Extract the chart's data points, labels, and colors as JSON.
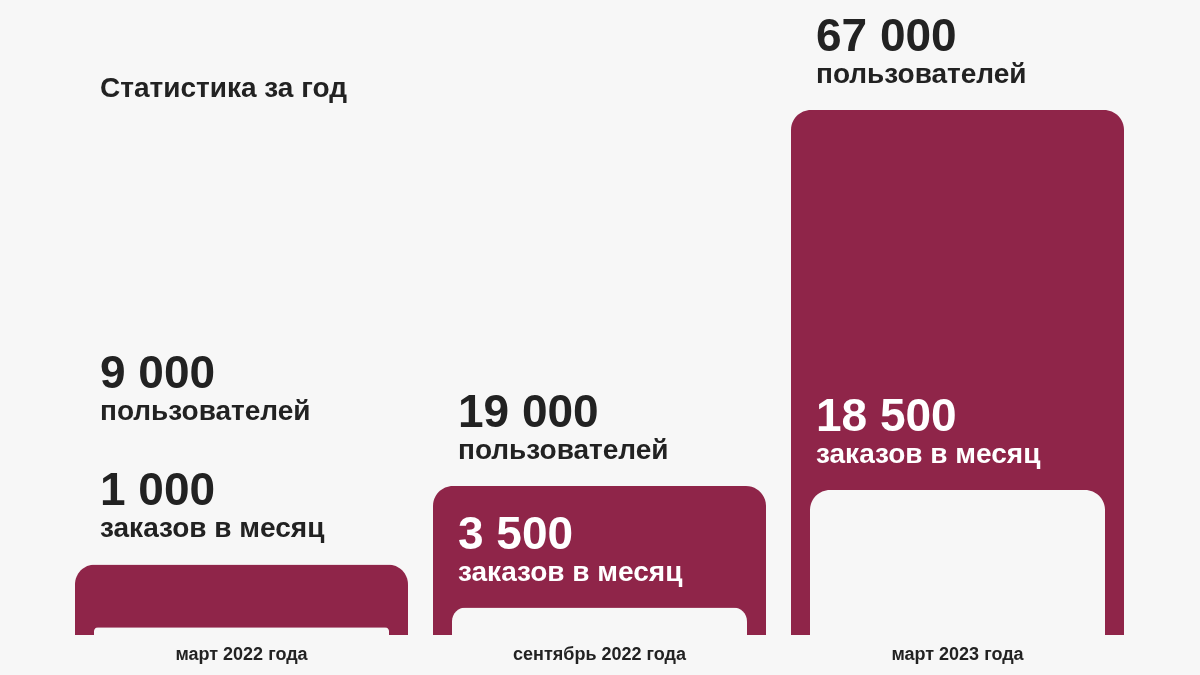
{
  "chart_data": {
    "type": "bar",
    "title": "Статистика за год",
    "tick_labels": "x",
    "categories": [
      "март 2022 года",
      "сентябрь 2022 года",
      "март 2023 года"
    ],
    "series": [
      {
        "color": "#8f2549",
        "values": [
          9000,
          19000,
          67000
        ],
        "value_labels": [
          "9 000\nпользователей",
          "19 000\nпользователей",
          "67 000\nпользователей"
        ]
      },
      {
        "color": "#f7f7f7",
        "values": [
          1000,
          3500,
          18500
        ],
        "value_labels": [
          "1 000\nзаказов в месяц",
          "3 500\nзаказов в месяц",
          "18 500\nзаказов в месяц"
        ]
      }
    ]
  }
}
